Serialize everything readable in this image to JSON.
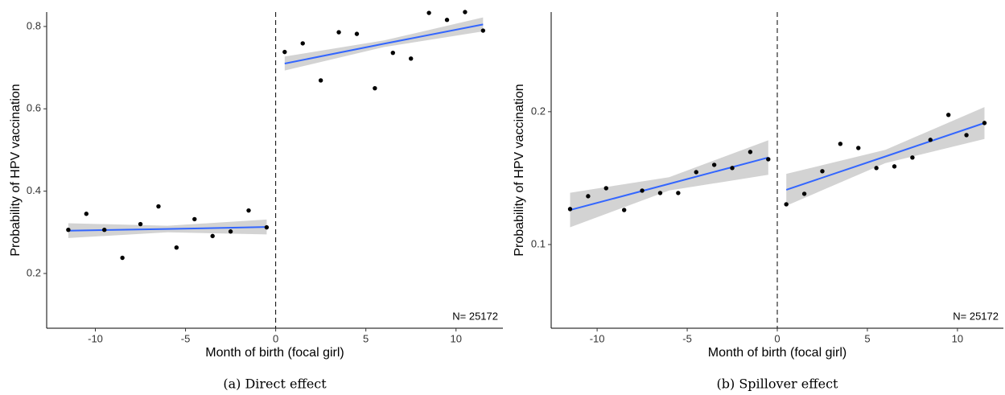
{
  "chart_data": [
    {
      "type": "scatter",
      "caption": "(a) Direct effect",
      "xlabel": "Month of birth (focal girl)",
      "ylabel": "Probability of HPV vaccination",
      "annotation": "N= 25172",
      "xlim": [
        -12.7,
        12.6
      ],
      "ylim": [
        0.067,
        0.835
      ],
      "xticks": [
        -10,
        -5,
        0,
        5,
        10
      ],
      "yticks": [
        0.2,
        0.4,
        0.6,
        0.8
      ],
      "vline": 0,
      "series": [
        {
          "color": "#000000",
          "x": [
            -11.5,
            -10.5,
            -9.5,
            -8.5,
            -7.5,
            -6.5,
            -5.5,
            -4.5,
            -3.5,
            -2.5,
            -1.5,
            -0.5,
            0.5,
            1.5,
            2.5,
            3.5,
            4.5,
            5.5,
            6.5,
            7.5,
            8.5,
            9.5,
            10.5,
            11.5
          ],
          "values": [
            0.306,
            0.345,
            0.306,
            0.238,
            0.32,
            0.363,
            0.263,
            0.332,
            0.291,
            0.302,
            0.353,
            0.312,
            0.738,
            0.759,
            0.669,
            0.786,
            0.782,
            0.65,
            0.736,
            0.722,
            0.833,
            0.816,
            0.835,
            0.79
          ]
        }
      ],
      "fits": [
        {
          "color": "#3366ff",
          "band_color": "#d3d3d3",
          "x": [
            -11.5,
            -6,
            -0.5
          ],
          "values": [
            0.304,
            0.308,
            0.313
          ],
          "lower": [
            0.286,
            0.3,
            0.295
          ],
          "upper": [
            0.322,
            0.316,
            0.331
          ]
        },
        {
          "color": "#3366ff",
          "band_color": "#d3d3d3",
          "x": [
            0.5,
            6,
            11.5
          ],
          "values": [
            0.71,
            0.758,
            0.805
          ],
          "lower": [
            0.693,
            0.75,
            0.788
          ],
          "upper": [
            0.727,
            0.766,
            0.822
          ]
        }
      ]
    },
    {
      "type": "scatter",
      "caption": "(b) Spillover effect",
      "xlabel": "Month of birth (focal girl)",
      "ylabel": "Probability of HPV vaccination",
      "annotation": "N= 25172",
      "xlim": [
        -12.55,
        12.55
      ],
      "ylim": [
        0.037,
        0.275
      ],
      "xticks": [
        -10,
        -5,
        0,
        5,
        10
      ],
      "yticks": [
        0.1,
        0.2
      ],
      "vline": 0,
      "series": [
        {
          "color": "#000000",
          "x": [
            -11.5,
            -10.5,
            -9.5,
            -8.5,
            -7.5,
            -6.5,
            -5.5,
            -4.5,
            -3.5,
            -2.5,
            -1.5,
            -0.5,
            0.5,
            1.5,
            2.5,
            3.5,
            4.5,
            5.5,
            6.5,
            7.5,
            8.5,
            9.5,
            10.5,
            11.5
          ],
          "values": [
            0.1267,
            0.1364,
            0.1424,
            0.126,
            0.1406,
            0.1388,
            0.1388,
            0.1545,
            0.16,
            0.1576,
            0.1697,
            0.1642,
            0.1303,
            0.1382,
            0.1552,
            0.1758,
            0.1727,
            0.1576,
            0.1588,
            0.1655,
            0.1788,
            0.1976,
            0.1824,
            0.1915
          ]
        }
      ],
      "fits": [
        {
          "color": "#3366ff",
          "band_color": "#d3d3d3",
          "x": [
            -11.5,
            -6,
            -0.5
          ],
          "values": [
            0.126,
            0.1457,
            0.1655
          ],
          "lower": [
            0.113,
            0.1407,
            0.1525
          ],
          "upper": [
            0.139,
            0.1507,
            0.1785
          ]
        },
        {
          "color": "#3366ff",
          "band_color": "#d3d3d3",
          "x": [
            0.5,
            6,
            11.5
          ],
          "values": [
            0.1412,
            0.1663,
            0.1915
          ],
          "lower": [
            0.1292,
            0.1613,
            0.1795
          ],
          "upper": [
            0.1532,
            0.1713,
            0.2035
          ]
        }
      ]
    }
  ]
}
